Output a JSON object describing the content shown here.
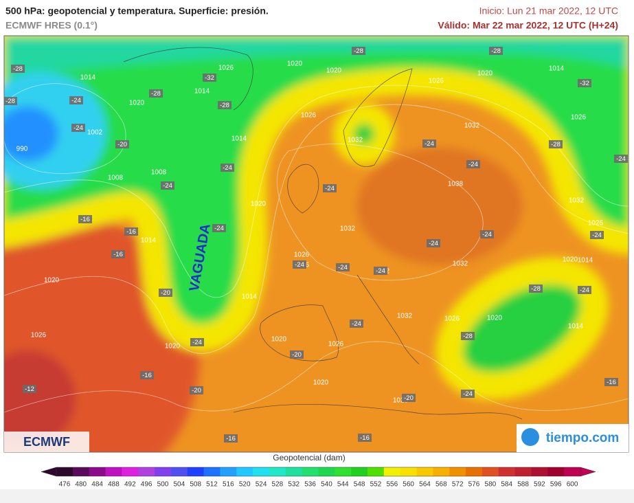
{
  "header": {
    "title": "500 hPa: geopotencial y temperatura. Superficie: presión.",
    "subtitle": "ECMWF HRES (0.1°)",
    "init": "Inicio: Lun 21 mar 2022, 12 UTC",
    "valid": "Válido: Mar 22 mar 2022, 12 UTC (H+24)"
  },
  "isobar_labels": [
    1026,
    1020,
    1020,
    1020,
    1014,
    1014,
    1020,
    1014,
    1026,
    1026,
    1032,
    1026,
    1002,
    990,
    1014,
    1032,
    1008,
    1008,
    1038,
    1020,
    1032,
    1026,
    1032,
    1014,
    1026,
    1032,
    1026,
    1032,
    1020,
    1014,
    1020,
    1014,
    1032,
    1026,
    1020,
    1014,
    1026,
    1020,
    1026,
    1020,
    1020,
    1020
  ],
  "temperature_labels": [
    -28,
    -28,
    -28,
    -32,
    -28,
    -24,
    -28,
    -28,
    -32,
    -24,
    -20,
    -28,
    -24,
    -24,
    -24,
    -24,
    -24,
    -24,
    -16,
    -16,
    -24,
    -24,
    -24,
    -24,
    -16,
    -24,
    -24,
    -24,
    -28,
    -24,
    -20,
    -24,
    -24,
    -20,
    -28,
    -16,
    -20,
    -12,
    -20,
    -24,
    -16,
    -16,
    -16
  ],
  "annotation": "VAGUADA",
  "logos": {
    "left": "ECMWF",
    "right": "tiempo.com"
  },
  "colorbar": {
    "title": "Geopotencial (dam)",
    "ticks": [
      476,
      480,
      484,
      488,
      492,
      496,
      500,
      504,
      508,
      512,
      516,
      520,
      524,
      528,
      532,
      536,
      540,
      544,
      548,
      552,
      556,
      560,
      564,
      568,
      572,
      576,
      580,
      584,
      588,
      592,
      596,
      600
    ],
    "colors": [
      "#2d0a2d",
      "#5a0a5a",
      "#8c0a8c",
      "#c010c0",
      "#e020e0",
      "#b040e0",
      "#8040f0",
      "#5050f0",
      "#2040ff",
      "#2070ff",
      "#20a0ff",
      "#20c8ff",
      "#20e0f0",
      "#20e8c8",
      "#20e0a0",
      "#20e070",
      "#20d850",
      "#30e030",
      "#20d020",
      "#50e000",
      "#f0f000",
      "#f8e000",
      "#f8c800",
      "#f8b000",
      "#f09000",
      "#e87000",
      "#e05020",
      "#d03030",
      "#c02030",
      "#b01030",
      "#a00030",
      "#c00050"
    ]
  }
}
